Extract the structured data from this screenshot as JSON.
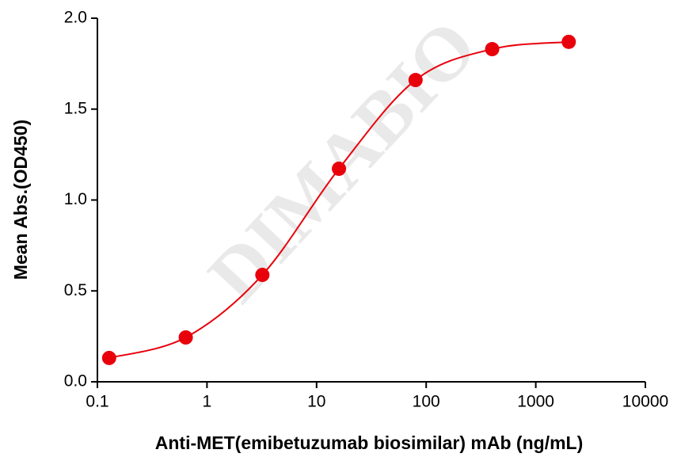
{
  "chart_data": {
    "type": "scatter",
    "watermark": "DIMABIO",
    "x_label": "Anti-MET(emibetuzumab biosimilar) mAb (ng/mL)",
    "y_label": "Mean Abs.(OD450)",
    "x": [
      0.128,
      0.64,
      3.2,
      16,
      80,
      400,
      2000
    ],
    "series": [
      {
        "color": "#e8000b",
        "values": [
          0.131,
          0.244,
          0.588,
          1.172,
          1.66,
          1.83,
          1.87
        ]
      }
    ],
    "xlog": true,
    "xlim": [
      0.1,
      10000
    ],
    "xticks": [
      0.1,
      1,
      10,
      100,
      1000,
      10000
    ],
    "ylim": [
      0,
      2
    ],
    "yticks": [
      {
        "value": 0,
        "label": "0.0"
      },
      0.5,
      {
        "value": 1,
        "label": "1.0"
      },
      1.5,
      {
        "value": 2,
        "label": "2.0"
      }
    ]
  }
}
